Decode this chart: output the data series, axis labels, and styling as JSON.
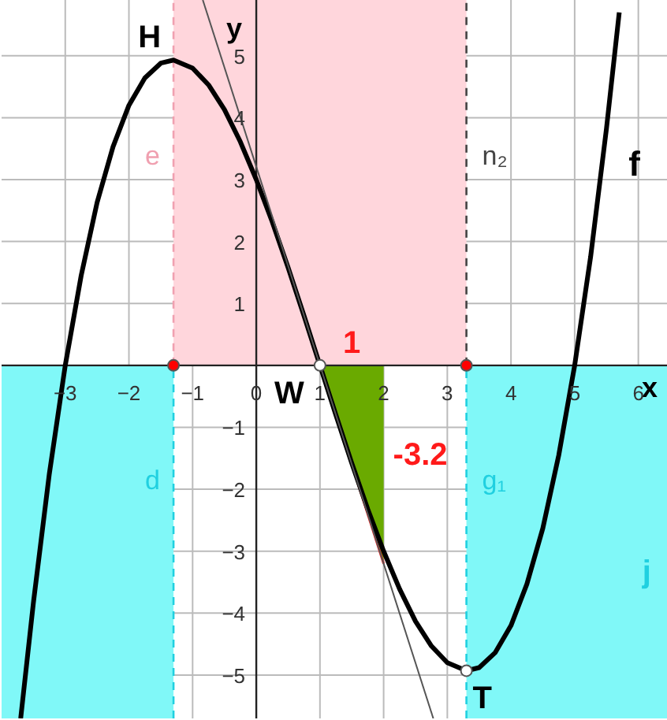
{
  "chart_data": {
    "type": "line",
    "xlabel": "x",
    "ylabel": "y",
    "xlim": [
      -4,
      6.45
    ],
    "ylim": [
      -5.7,
      5.9
    ],
    "xticks": [
      -3,
      -2,
      -1,
      0,
      1,
      2,
      3,
      4,
      5,
      6
    ],
    "yticks": [
      -5,
      -4,
      -3,
      -2,
      -1,
      1,
      2,
      3,
      4,
      5
    ],
    "grid": true,
    "legend": false,
    "series": [
      {
        "name": "f",
        "marker": "none",
        "color": "#000000",
        "x": [
          -3.7,
          -3.5,
          -3.25,
          -3,
          -2.75,
          -2.5,
          -2.25,
          -2,
          -1.75,
          -1.5,
          -1.3,
          -1,
          -0.75,
          -0.5,
          -0.25,
          0,
          0.25,
          0.5,
          0.75,
          1,
          1.25,
          1.5,
          1.75,
          2,
          2.25,
          2.5,
          2.75,
          3,
          3.3,
          3.5,
          3.75,
          4,
          4.25,
          4.5,
          4.75,
          5,
          5.25,
          5.5,
          5.7
        ],
        "values": [
          -5.7,
          -3.83,
          -1.75,
          0,
          1.45,
          2.63,
          3.53,
          4.2,
          4.64,
          4.88,
          4.93,
          4.8,
          4.53,
          4.13,
          3.61,
          3,
          2.32,
          1.58,
          0.8,
          0,
          -0.8,
          -1.58,
          -2.32,
          -3,
          -3.61,
          -4.13,
          -4.53,
          -4.8,
          -4.93,
          -4.88,
          -4.64,
          -4.2,
          -3.53,
          -2.63,
          -1.45,
          0,
          1.75,
          3.83,
          5.7
        ]
      },
      {
        "type": "line",
        "marker": "none",
        "color": "#555555",
        "x": [
          -0.84,
          2.78
        ],
        "values": [
          5.9,
          -5.7
        ]
      },
      {
        "type": "area",
        "color": "#6aaa00",
        "x": [
          1,
          2
        ],
        "values": [
          0,
          -3.2
        ]
      },
      {
        "type": "scatter",
        "marker": "circle",
        "color": "#ff0000",
        "x": [
          -1.3,
          3.3
        ],
        "values": [
          0,
          0
        ]
      },
      {
        "type": "scatter",
        "marker": "circle",
        "color": "#ffffff",
        "x": [
          1,
          3.3
        ],
        "values": [
          0,
          -4.93
        ]
      }
    ],
    "bands": [
      {
        "axis": "x",
        "from": -1.3,
        "to": 3.3,
        "color": "#ffd6dc"
      },
      {
        "axis": "x",
        "from": -4,
        "to": -1.3,
        "color": "#80f8f8"
      },
      {
        "axis": "x",
        "from": 3.3,
        "to": 6.45,
        "color": "#80f8f8"
      }
    ],
    "ref_lines": [
      {
        "axis": "x",
        "value": -1.3,
        "label": "e",
        "color": "#f0a0b0",
        "line_style": "dashed"
      },
      {
        "axis": "x",
        "value": 3.3,
        "label": "n₂",
        "color": "#444444",
        "line_style": "dashed"
      },
      {
        "axis": "x",
        "value": -1.3,
        "label": "d",
        "color": "#20d0e0",
        "line_style": "dashed"
      },
      {
        "axis": "x",
        "value": 3.3,
        "label": "g₁",
        "color": "#20d0e0",
        "line_style": "dashed"
      }
    ],
    "annotations": [
      {
        "text": "H",
        "x": -1.3,
        "y": 4.93
      },
      {
        "text": "W",
        "x": 1,
        "y": 0
      },
      {
        "text": "T",
        "x": 3.3,
        "y": -4.93
      },
      {
        "text": "1",
        "x": 1.5,
        "y": 0
      },
      {
        "text": "-3.2",
        "x": 2,
        "y": -1.6
      },
      {
        "text": "j",
        "x": 6.4,
        "y": -3.5
      }
    ]
  }
}
